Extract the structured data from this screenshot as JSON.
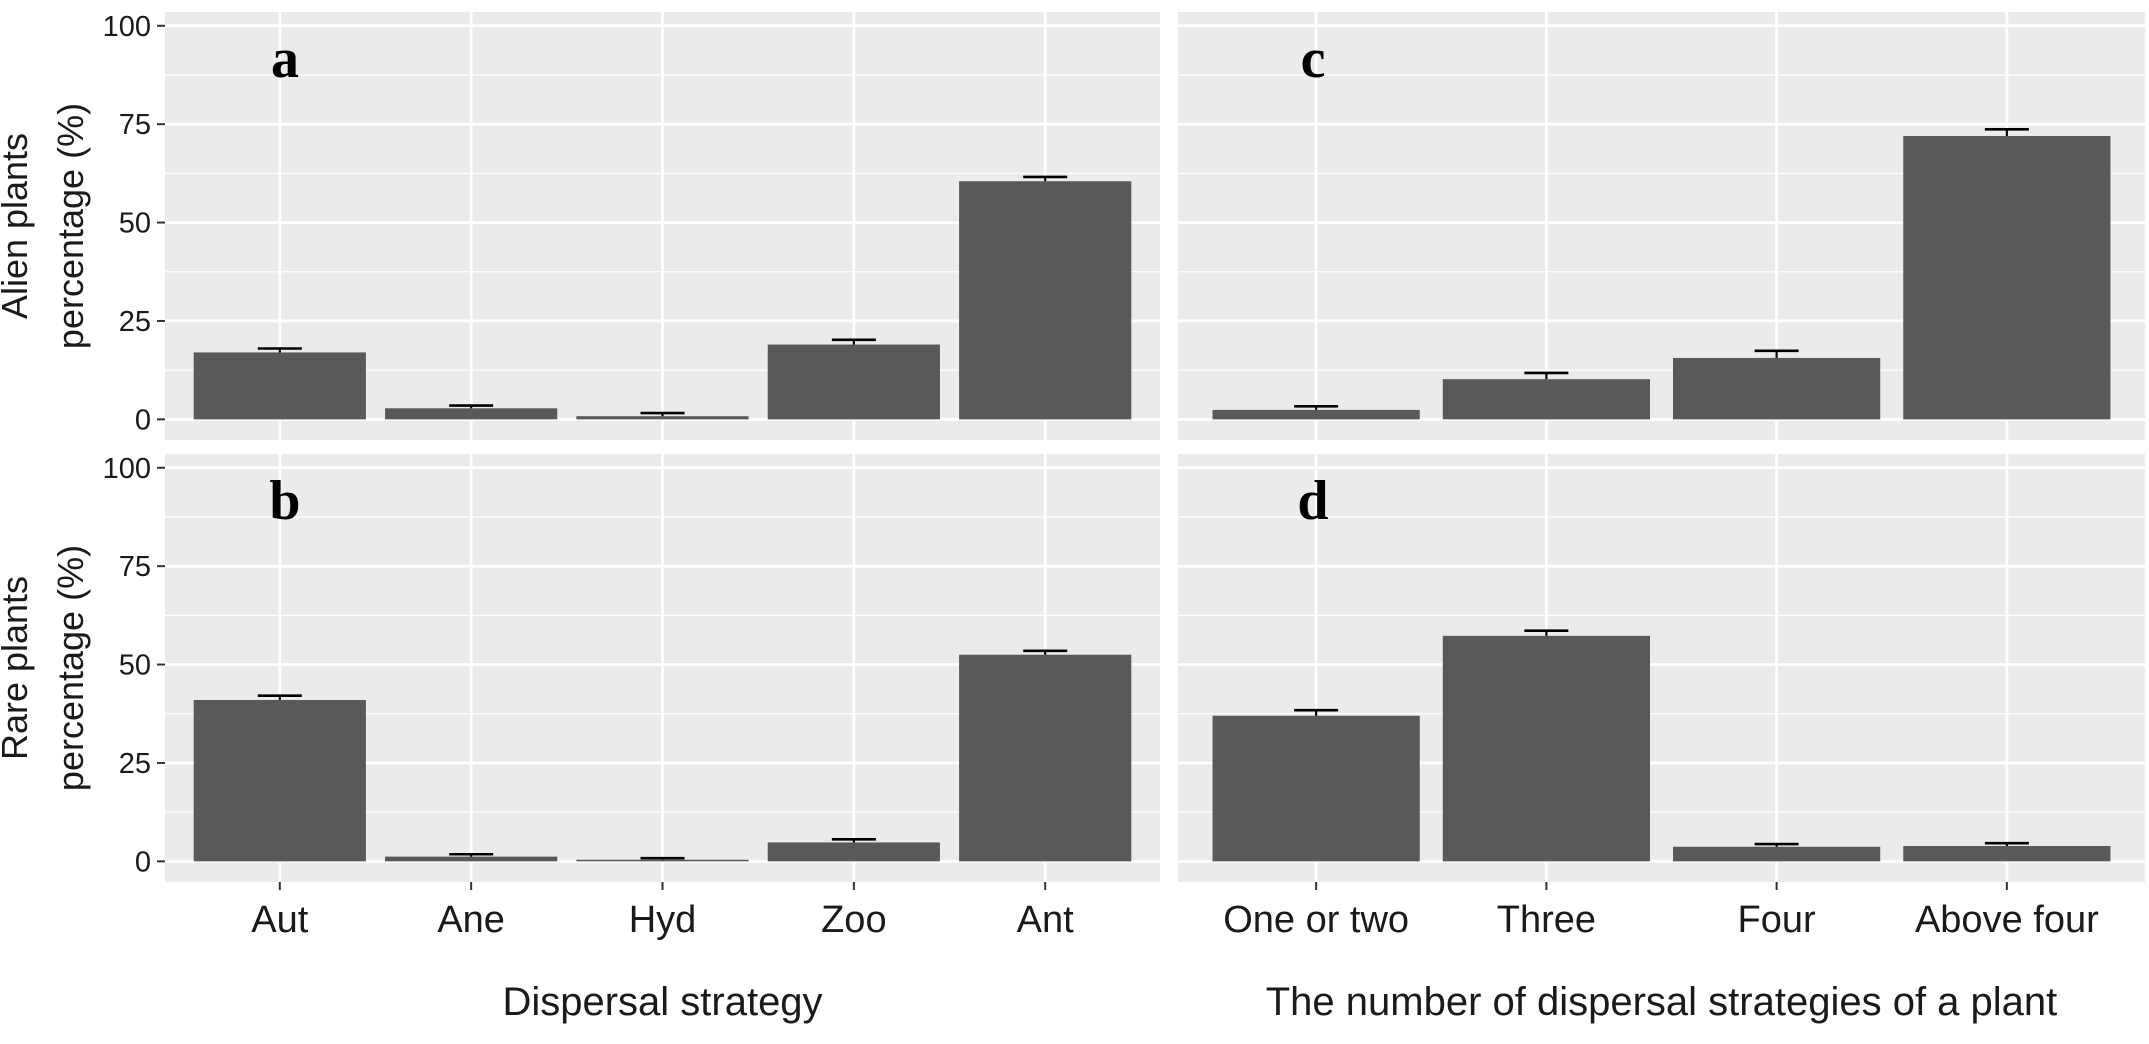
{
  "chart_data": [
    {
      "type": "bar",
      "panel_label": "a",
      "categories": [
        "Aut",
        "Ane",
        "Hyd",
        "Zoo",
        "Ant"
      ],
      "values": [
        17,
        2.8,
        0.8,
        19,
        60.5
      ],
      "error_upper": [
        18,
        3.5,
        1.6,
        20.2,
        61.6
      ],
      "ylabel_lines": [
        "Alien plants",
        "percentage  (%)"
      ],
      "xlabel": "",
      "ylim": [
        0,
        100
      ],
      "yticks": [
        "0",
        "25",
        "50",
        "75",
        "100"
      ],
      "show_x_tick_labels": false,
      "grid": true
    },
    {
      "type": "bar",
      "panel_label": "c",
      "categories": [
        "One or two",
        "Three",
        "Four",
        "Above four"
      ],
      "values": [
        2.4,
        10.2,
        15.6,
        72
      ],
      "error_upper": [
        3.3,
        11.8,
        17.4,
        73.7
      ],
      "xlabel": "",
      "ylim": [
        0,
        100
      ],
      "show_x_tick_labels": false,
      "grid": true
    },
    {
      "type": "bar",
      "panel_label": "b",
      "categories": [
        "Aut",
        "Ane",
        "Hyd",
        "Zoo",
        "Ant"
      ],
      "values": [
        41,
        1.2,
        0.4,
        4.8,
        52.5
      ],
      "error_upper": [
        42.1,
        1.8,
        0.8,
        5.6,
        53.5
      ],
      "ylabel_lines": [
        "Rare  plants",
        "percentage  (%)"
      ],
      "xlabel": "Dispersal strategy",
      "ylim": [
        0,
        100
      ],
      "yticks": [
        "0",
        "25",
        "50",
        "75",
        "100"
      ],
      "show_x_tick_labels": true,
      "grid": true
    },
    {
      "type": "bar",
      "panel_label": "d",
      "categories": [
        "One or two",
        "Three",
        "Four",
        "Above four"
      ],
      "values": [
        37,
        57.3,
        3.7,
        3.9
      ],
      "error_upper": [
        38.4,
        58.6,
        4.4,
        4.6
      ],
      "xlabel": "The number of dispersal strategies of a plant",
      "ylim": [
        0,
        100
      ],
      "show_x_tick_labels": true,
      "grid": true
    }
  ],
  "colors": {
    "panel_background": "#ebebeb",
    "grid_line": "#ffffff",
    "bar_fill": "#595959",
    "error_bar": "#000000",
    "text": "#1a1a1a"
  }
}
